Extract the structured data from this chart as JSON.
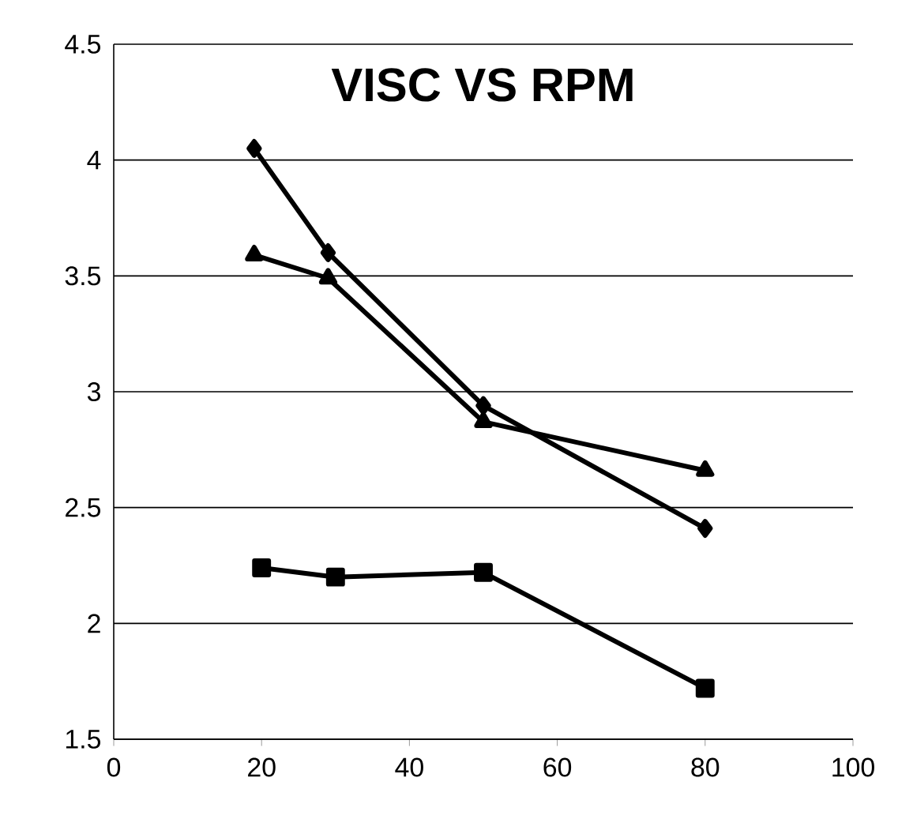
{
  "chart_data": {
    "type": "line",
    "title": "VISC VS RPM",
    "series": [
      {
        "color": "#000000",
        "marker": "diamond",
        "x": [
          19,
          29,
          50,
          80
        ],
        "values": [
          4.05,
          3.6,
          2.94,
          2.41
        ]
      },
      {
        "color": "#000000",
        "marker": "triangle",
        "x": [
          19,
          29,
          50,
          80
        ],
        "values": [
          3.59,
          3.49,
          2.87,
          2.66
        ]
      },
      {
        "color": "#000000",
        "marker": "square",
        "x": [
          20,
          30,
          50,
          80
        ],
        "values": [
          2.24,
          2.2,
          2.22,
          1.72
        ]
      }
    ],
    "xlim": [
      0,
      100
    ],
    "xticks": [
      0,
      20,
      40,
      60,
      80,
      100
    ],
    "ylim": [
      1.5,
      4.5
    ],
    "yticks": [
      1.5,
      2,
      2.5,
      3,
      3.5,
      4,
      4.5
    ],
    "grid": "y"
  }
}
